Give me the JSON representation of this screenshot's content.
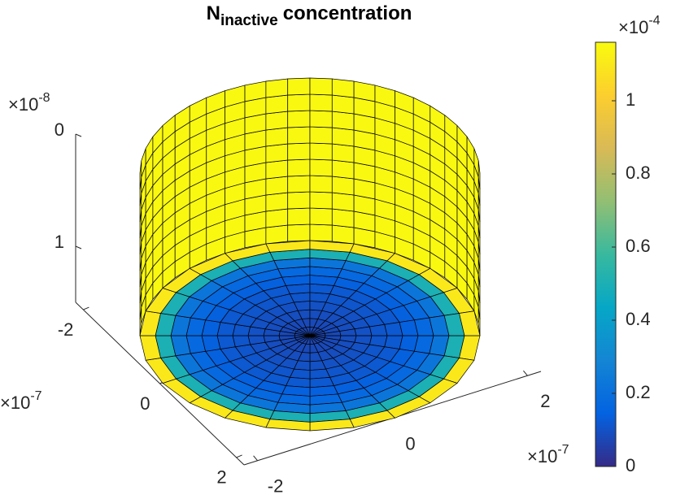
{
  "chart_data": {
    "type": "surface3d",
    "title": {
      "base": "N",
      "subscript": "inactive",
      "rest": "concentration"
    },
    "colormap": "parula",
    "disk_ring_values": [
      0.07,
      0.08,
      0.09,
      0.1,
      0.11,
      0.12,
      0.14,
      0.17,
      0.22,
      0.5,
      1.1
    ],
    "wall_value": 1.15,
    "xlim": [
      -2.2,
      2.2
    ],
    "xticks": [
      -2,
      0,
      2
    ],
    "x_exponent": {
      "base": "×10",
      "exponent": "-7"
    },
    "ylim": [
      -2.2,
      2.2
    ],
    "yticks": [
      -2,
      0,
      2
    ],
    "y_exponent": {
      "base": "×10",
      "exponent": "-7"
    },
    "zlim": [
      0,
      1.5
    ],
    "zticks": [
      0,
      1
    ],
    "z_exponent": {
      "base": "×10",
      "exponent": "-8"
    },
    "clim": [
      0,
      1.16
    ],
    "cticks": [
      0,
      0.2,
      0.4,
      0.6,
      0.8,
      1
    ],
    "c_exponent": {
      "base": "×10",
      "exponent": "-4"
    }
  }
}
